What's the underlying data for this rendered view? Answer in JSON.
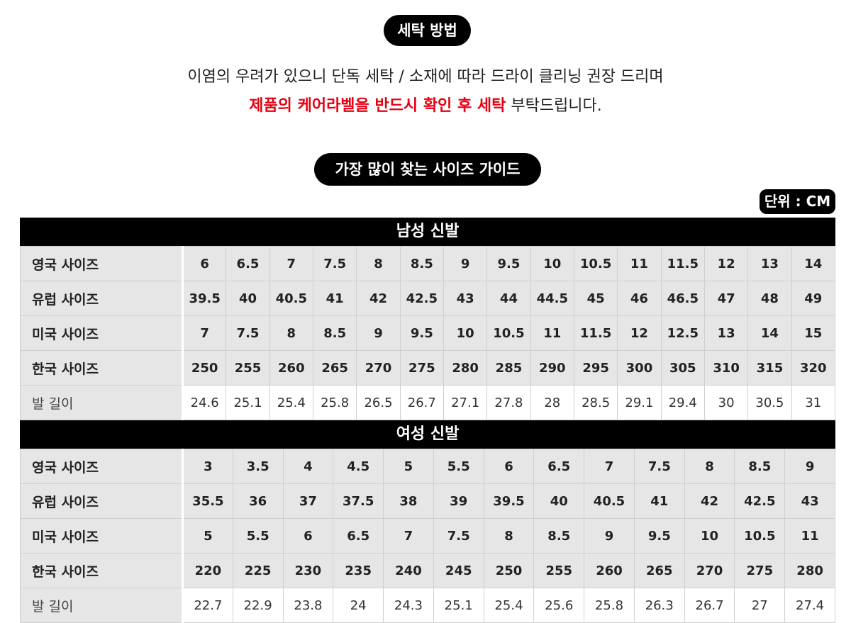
{
  "wash": {
    "title": "세탁 방법",
    "line1": "이염의 우려가 있으니 단독 세탁 / 소재에 따라 드라이 클리닝 권장 드리며",
    "line2_red": "제품의 케어라벨을 반드시 확인 후 세탁",
    "line2_rest": " 부탁드립니다."
  },
  "guide": {
    "title": "가장 많이 찾는 사이즈 가이드",
    "unit": "단위 : CM"
  },
  "men": {
    "title": "남성 신발",
    "rows": [
      {
        "label": "영국 사이즈",
        "values": [
          "6",
          "6.5",
          "7",
          "7.5",
          "8",
          "8.5",
          "9",
          "9.5",
          "10",
          "10.5",
          "11",
          "11.5",
          "12",
          "13",
          "14"
        ]
      },
      {
        "label": "유럽 사이즈",
        "values": [
          "39.5",
          "40",
          "40.5",
          "41",
          "42",
          "42.5",
          "43",
          "44",
          "44.5",
          "45",
          "46",
          "46.5",
          "47",
          "48",
          "49"
        ]
      },
      {
        "label": "미국 사이즈",
        "values": [
          "7",
          "7.5",
          "8",
          "8.5",
          "9",
          "9.5",
          "10",
          "10.5",
          "11",
          "11.5",
          "12",
          "12.5",
          "13",
          "14",
          "15"
        ]
      },
      {
        "label": "한국 사이즈",
        "values": [
          "250",
          "255",
          "260",
          "265",
          "270",
          "275",
          "280",
          "285",
          "290",
          "295",
          "300",
          "305",
          "310",
          "315",
          "320"
        ]
      },
      {
        "label": "발 길이",
        "values": [
          "24.6",
          "25.1",
          "25.4",
          "25.8",
          "26.5",
          "26.7",
          "27.1",
          "27.8",
          "28",
          "28.5",
          "29.1",
          "29.4",
          "30",
          "30.5",
          "31"
        ]
      }
    ]
  },
  "women": {
    "title": "여성 신발",
    "rows": [
      {
        "label": "영국 사이즈",
        "values": [
          "3",
          "3.5",
          "4",
          "4.5",
          "5",
          "5.5",
          "6",
          "6.5",
          "7",
          "7.5",
          "8",
          "8.5",
          "9"
        ]
      },
      {
        "label": "유럽 사이즈",
        "values": [
          "35.5",
          "36",
          "37",
          "37.5",
          "38",
          "39",
          "39.5",
          "40",
          "40.5",
          "41",
          "42",
          "42.5",
          "43"
        ]
      },
      {
        "label": "미국 사이즈",
        "values": [
          "5",
          "5.5",
          "6",
          "6.5",
          "7",
          "7.5",
          "8",
          "8.5",
          "9",
          "9.5",
          "10",
          "10.5",
          "11"
        ]
      },
      {
        "label": "한국 사이즈",
        "values": [
          "220",
          "225",
          "230",
          "235",
          "240",
          "245",
          "250",
          "255",
          "260",
          "265",
          "270",
          "275",
          "280"
        ]
      },
      {
        "label": "발 길이",
        "values": [
          "22.7",
          "22.9",
          "23.8",
          "24",
          "24.3",
          "25.1",
          "25.4",
          "25.6",
          "25.8",
          "26.3",
          "26.7",
          "27",
          "27.4"
        ]
      }
    ]
  }
}
